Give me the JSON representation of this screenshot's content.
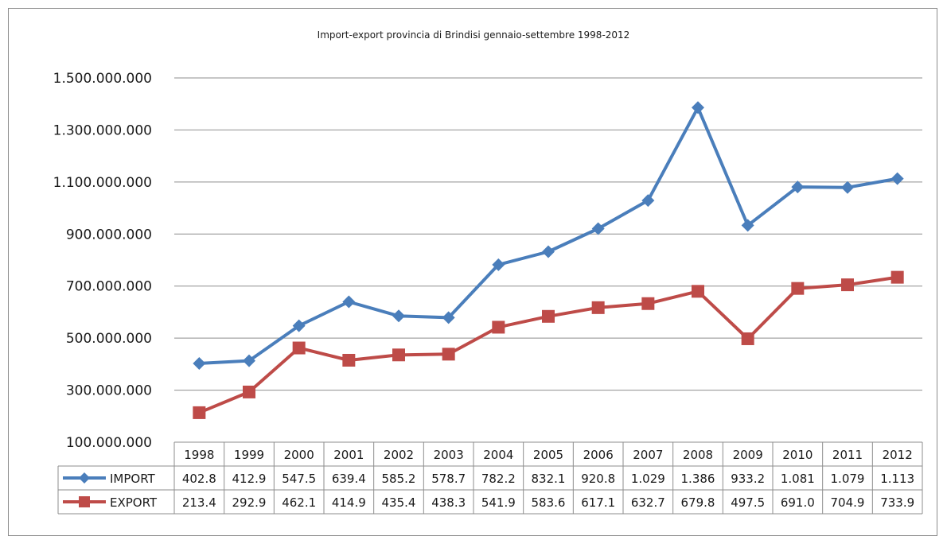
{
  "chart_data": {
    "type": "line",
    "title": "Import-export provincia di Brindisi gennaio-settembre  1998-2012",
    "xlabel": "",
    "ylabel": "",
    "ylim": [
      100000000,
      1500000000
    ],
    "y_ticks": [
      "100.000.000",
      "300.000.000",
      "500.000.000",
      "700.000.000",
      "900.000.000",
      "1.100.000.000",
      "1.300.000.000",
      "1.500.000.000"
    ],
    "y_tick_values": [
      100000000,
      300000000,
      500000000,
      700000000,
      900000000,
      1100000000,
      1300000000,
      1500000000
    ],
    "grid": "horizontal",
    "legend": "data-table",
    "categories": [
      "1998",
      "1999",
      "2000",
      "2001",
      "2002",
      "2003",
      "2004",
      "2005",
      "2006",
      "2007",
      "2008",
      "2009",
      "2010",
      "2011",
      "2012"
    ],
    "series": [
      {
        "name": "IMPORT",
        "color": "#4a7ebb",
        "marker": "diamond",
        "values": [
          402800000,
          412900000,
          547500000,
          639400000,
          585200000,
          578700000,
          782200000,
          832100000,
          920800000,
          1029000000,
          1386000000,
          933200000,
          1081000000,
          1079000000,
          1113000000
        ],
        "table_labels": [
          "402.8",
          "412.9",
          "547.5",
          "639.4",
          "585.2",
          "578.7",
          "782.2",
          "832.1",
          "920.8",
          "1.029",
          "1.386",
          "933.2",
          "1.081",
          "1.079",
          "1.113"
        ]
      },
      {
        "name": "EXPORT",
        "color": "#be4b48",
        "marker": "square",
        "values": [
          213400000,
          292900000,
          462100000,
          414900000,
          435400000,
          438300000,
          541900000,
          583600000,
          617100000,
          632700000,
          679800000,
          497500000,
          691000000,
          704900000,
          733900000
        ],
        "table_labels": [
          "213.4",
          "292.9",
          "462.1",
          "414.9",
          "435.4",
          "438.3",
          "541.9",
          "583.6",
          "617.1",
          "632.7",
          "679.8",
          "497.5",
          "691.0",
          "704.9",
          "733.9"
        ]
      }
    ]
  }
}
